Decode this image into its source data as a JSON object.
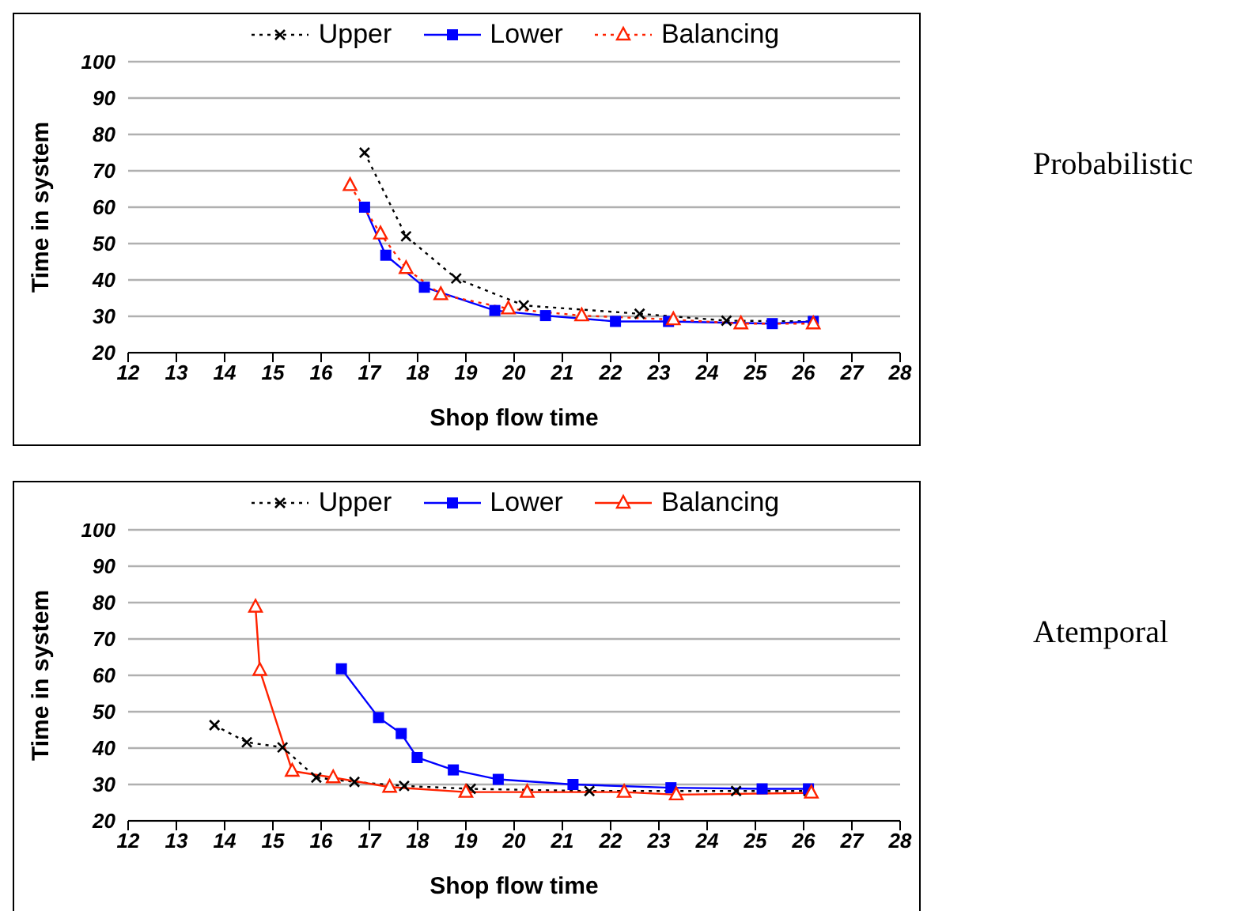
{
  "chart_data": [
    {
      "type": "line",
      "xlabel": "Shop flow time",
      "ylabel": "Time in system",
      "annotations": [
        "Probabilistic"
      ],
      "xlim": [
        12,
        28
      ],
      "xticks": [
        12,
        13,
        14,
        15,
        16,
        17,
        18,
        19,
        20,
        21,
        22,
        23,
        24,
        25,
        26,
        27,
        28
      ],
      "ylim": [
        20,
        100
      ],
      "yticks": [
        20,
        30,
        40,
        50,
        60,
        70,
        80,
        90,
        100
      ],
      "grid": "y",
      "legend": "top",
      "series": [
        {
          "name": "Upper",
          "color": "#000000",
          "marker": "cross",
          "line_style": "dotted",
          "x": [
            16.9,
            17.76,
            18.8,
            20.2,
            22.6,
            24.4,
            26.2
          ],
          "values": [
            75,
            52,
            40.4,
            33,
            30.7,
            28.8,
            28.6
          ]
        },
        {
          "name": "Lower",
          "color": "#0000ff",
          "marker": "square",
          "line_style": "solid",
          "x": [
            16.9,
            17.34,
            18.14,
            19.6,
            20.65,
            22.1,
            23.2,
            25.35,
            26.2
          ],
          "values": [
            60,
            46.8,
            38,
            31.6,
            30.2,
            28.6,
            28.6,
            28,
            28.6
          ]
        },
        {
          "name": "Balancing",
          "color": "#ff2200",
          "marker": "triangle",
          "line_style": "dotted",
          "x": [
            16.6,
            17.23,
            17.76,
            18.48,
            19.88,
            21.4,
            23.3,
            24.7,
            26.2
          ],
          "values": [
            66,
            52.7,
            43.2,
            36,
            32.1,
            30.2,
            29.1,
            28,
            28
          ]
        }
      ]
    },
    {
      "type": "line",
      "xlabel": "Shop flow time",
      "ylabel": "Time in system",
      "annotations": [
        "Atemporal"
      ],
      "xlim": [
        12,
        28
      ],
      "xticks": [
        12,
        13,
        14,
        15,
        16,
        17,
        18,
        19,
        20,
        21,
        22,
        23,
        24,
        25,
        26,
        27,
        28
      ],
      "ylim": [
        20,
        100
      ],
      "yticks": [
        20,
        30,
        40,
        50,
        60,
        70,
        80,
        90,
        100
      ],
      "grid": "y",
      "legend": "top",
      "series": [
        {
          "name": "Upper",
          "color": "#000000",
          "marker": "cross",
          "line_style": "dotted",
          "x": [
            13.79,
            14.46,
            15.2,
            15.9,
            16.69,
            17.72,
            19.1,
            21.56,
            24.6,
            26.1
          ],
          "values": [
            46.3,
            41.6,
            40.2,
            31.9,
            30.7,
            29.6,
            28.8,
            28.2,
            28.2,
            28.2
          ]
        },
        {
          "name": "Lower",
          "color": "#0000ff",
          "marker": "square",
          "line_style": "solid",
          "x": [
            16.42,
            17.19,
            17.66,
            17.99,
            18.74,
            19.67,
            21.22,
            23.25,
            25.14,
            26.1
          ],
          "values": [
            61.8,
            48.4,
            44,
            37.4,
            34,
            31.4,
            30,
            29.1,
            28.8,
            28.8
          ]
        },
        {
          "name": "Balancing",
          "color": "#ff2200",
          "marker": "triangle",
          "line_style": "solid",
          "x": [
            14.64,
            14.73,
            15.4,
            16.25,
            17.42,
            19.0,
            20.27,
            22.28,
            23.36,
            26.16
          ],
          "values": [
            78.8,
            61.4,
            33.7,
            31.9,
            29.3,
            27.9,
            27.9,
            27.9,
            27.2,
            27.7
          ]
        }
      ]
    }
  ]
}
